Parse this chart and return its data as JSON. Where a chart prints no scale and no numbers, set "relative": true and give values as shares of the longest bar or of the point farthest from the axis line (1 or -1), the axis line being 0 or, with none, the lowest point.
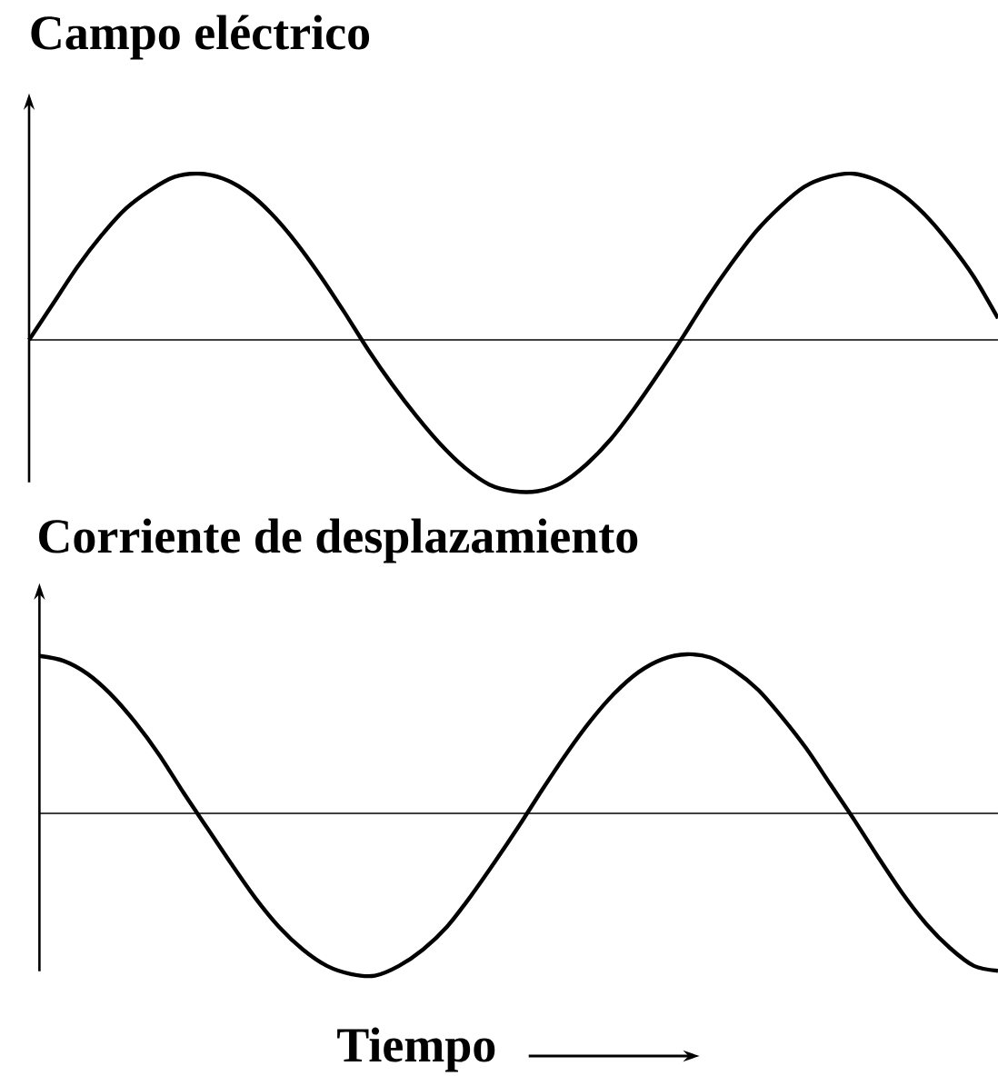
{
  "chart_data": [
    {
      "type": "line",
      "title": "Campo eléctrico",
      "relative": true,
      "color": "#000000",
      "categories": [
        null,
        null,
        null,
        null,
        null,
        null,
        null,
        null,
        null,
        null,
        null,
        null,
        null,
        null,
        null,
        null,
        null,
        null,
        null,
        null,
        null,
        null,
        null,
        null,
        null,
        null,
        null,
        null,
        null,
        null,
        null,
        null,
        null,
        null,
        null,
        null,
        null,
        null,
        null,
        null,
        null
      ],
      "values": [
        0,
        0.22,
        0.44,
        0.63,
        0.79,
        0.9,
        0.98,
        1,
        0.97,
        0.89,
        0.76,
        0.59,
        0.39,
        0.17,
        -0.06,
        -0.27,
        -0.46,
        -0.63,
        -0.77,
        -0.87,
        -0.91,
        -0.91,
        -0.86,
        -0.75,
        -0.6,
        -0.41,
        -0.2,
        0.02,
        0.25,
        0.46,
        0.65,
        0.8,
        0.92,
        0.98,
        1,
        0.96,
        0.88,
        0.75,
        0.58,
        0.38,
        0.13
      ]
    },
    {
      "type": "line",
      "title": "Corriente de desplazamiento",
      "xlabel": "Tiempo",
      "relative": true,
      "color": "#000000",
      "categories": [
        null,
        null,
        null,
        null,
        null,
        null,
        null,
        null,
        null,
        null,
        null,
        null,
        null,
        null,
        null,
        null,
        null,
        null,
        null,
        null,
        null,
        null,
        null,
        null,
        null,
        null,
        null,
        null,
        null,
        null,
        null,
        null,
        null,
        null,
        null,
        null,
        null,
        null,
        null,
        null,
        null
      ],
      "values": [
        0.97,
        0.94,
        0.86,
        0.73,
        0.56,
        0.36,
        0.13,
        -0.09,
        -0.31,
        -0.52,
        -0.7,
        -0.84,
        -0.94,
        -0.99,
        -1,
        -0.94,
        -0.84,
        -0.7,
        -0.51,
        -0.3,
        -0.08,
        0.15,
        0.37,
        0.57,
        0.74,
        0.87,
        0.95,
        0.98,
        0.96,
        0.88,
        0.76,
        0.59,
        0.4,
        0.18,
        -0.04,
        -0.27,
        -0.49,
        -0.68,
        -0.83,
        -0.94,
        -0.97
      ]
    }
  ]
}
